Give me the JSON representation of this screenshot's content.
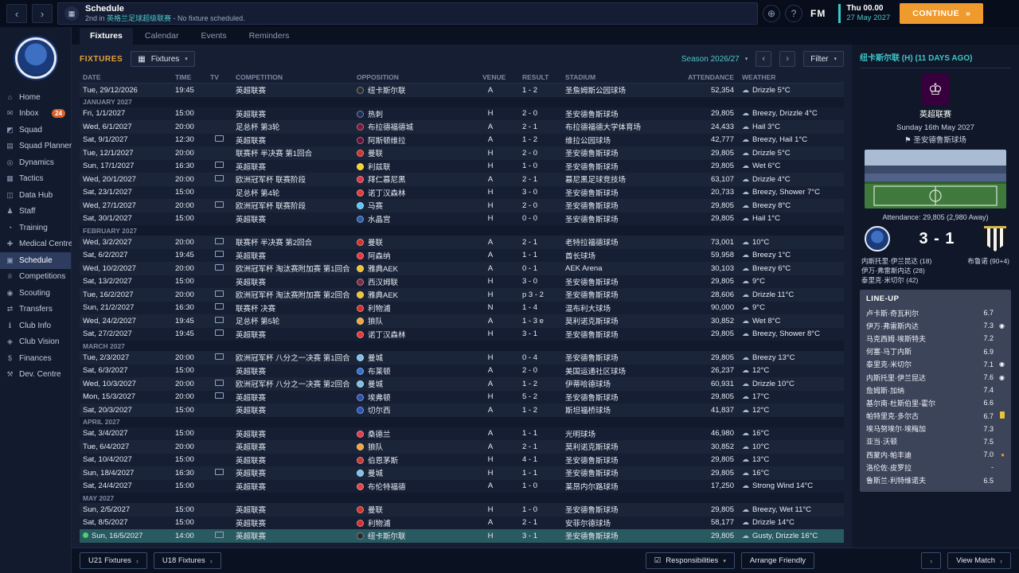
{
  "icons": {
    "back": "‹",
    "forward": "›",
    "continue_arrows": "»",
    "world": "⊕",
    "help": "?",
    "caret": "▾",
    "prev": "‹",
    "next": "›",
    "chev": "›",
    "cloud": "☁",
    "flag": "⚑",
    "crown": "♔",
    "grid": "▦",
    "check": "☑"
  },
  "topbar": {
    "title": "Schedule",
    "subtitle_prefix": "2nd in ",
    "subtitle_link": "英格兰足球超级联赛",
    "subtitle_suffix": " - No fixture scheduled.",
    "fm_label": "FM",
    "date_line1": "Thu 00.00",
    "date_line2": "27 May 2027",
    "continue_label": "CONTINUE"
  },
  "sidebar": {
    "items": [
      {
        "id": "home",
        "icon": "⌂",
        "label": "Home"
      },
      {
        "id": "inbox",
        "icon": "✉",
        "label": "Inbox",
        "badge": "24"
      },
      {
        "id": "squad",
        "icon": "◩",
        "label": "Squad"
      },
      {
        "id": "squad-planner",
        "icon": "▤",
        "label": "Squad Planner"
      },
      {
        "id": "dynamics",
        "icon": "◎",
        "label": "Dynamics"
      },
      {
        "id": "tactics",
        "icon": "▦",
        "label": "Tactics"
      },
      {
        "id": "data-hub",
        "icon": "◫",
        "label": "Data Hub"
      },
      {
        "id": "staff",
        "icon": "♟",
        "label": "Staff"
      },
      {
        "id": "training",
        "icon": "◔",
        "label": "Training"
      },
      {
        "id": "medical-centre",
        "icon": "✚",
        "label": "Medical Centre"
      },
      {
        "id": "schedule",
        "icon": "▣",
        "label": "Schedule",
        "active": true
      },
      {
        "id": "competitions",
        "icon": "♕",
        "label": "Competitions"
      },
      {
        "id": "scouting",
        "icon": "◉",
        "label": "Scouting"
      },
      {
        "id": "transfers",
        "icon": "⇄",
        "label": "Transfers"
      },
      {
        "id": "club-info",
        "icon": "ℹ",
        "label": "Club Info"
      },
      {
        "id": "club-vision",
        "icon": "◈",
        "label": "Club Vision"
      },
      {
        "id": "finances",
        "icon": "$",
        "label": "Finances"
      },
      {
        "id": "dev-centre",
        "icon": "⚒",
        "label": "Dev. Centre"
      }
    ]
  },
  "tabs": [
    {
      "id": "fixtures",
      "label": "Fixtures",
      "active": true
    },
    {
      "id": "calendar",
      "label": "Calendar"
    },
    {
      "id": "events",
      "label": "Events"
    },
    {
      "id": "reminders",
      "label": "Reminders"
    }
  ],
  "toolbar": {
    "section_label": "FIXTURES",
    "view_dropdown": "Fixtures",
    "season_dropdown": "Season 2026/27",
    "filter_label": "Filter"
  },
  "table": {
    "columns": [
      "DATE",
      "TIME",
      "TV",
      "COMPETITION",
      "OPPOSITION",
      "VENUE",
      "",
      "RESULT",
      "STADIUM",
      "ATTENDANCE",
      "WEATHER"
    ],
    "rows": [
      {
        "kind": "fixture",
        "date": "Tue, 29/12/2026",
        "time": "19:45",
        "tv": false,
        "comp": "英超联赛",
        "opp": "纽卡斯尔联",
        "color": "#2b2b2b",
        "venue": "A",
        "res": "L",
        "result": "1 - 2",
        "stadium": "圣詹姆斯公园球场",
        "att": "52,354",
        "weather": "Drizzle 5°C"
      },
      {
        "kind": "month",
        "label": "JANUARY 2027"
      },
      {
        "kind": "fixture",
        "date": "Fri, 1/1/2027",
        "time": "15:00",
        "tv": false,
        "comp": "英超联赛",
        "opp": "热刺",
        "color": "#1b2e57",
        "venue": "H",
        "res": "W",
        "result": "2 - 0",
        "stadium": "圣安德鲁斯球场",
        "att": "29,805",
        "weather": "Breezy, Drizzle 4°C"
      },
      {
        "kind": "fixture",
        "date": "Wed, 6/1/2027",
        "time": "20:00",
        "tv": false,
        "comp": "足总杯 第3轮",
        "opp": "布拉德福德城",
        "color": "#7f1734",
        "venue": "A",
        "res": "W",
        "result": "2 - 1",
        "stadium": "布拉德福德大学体育场",
        "att": "24,433",
        "weather": "Hail 3°C"
      },
      {
        "kind": "fixture",
        "date": "Sat, 9/1/2027",
        "time": "12:30",
        "tv": true,
        "comp": "英超联赛",
        "opp": "阿斯顿维拉",
        "color": "#670e36",
        "venue": "A",
        "res": "L",
        "result": "1 - 2",
        "stadium": "维拉公园球场",
        "att": "42,777",
        "weather": "Breezy, Hail 1°C"
      },
      {
        "kind": "fixture",
        "date": "Tue, 12/1/2027",
        "time": "20:00",
        "tv": false,
        "comp": "联赛杯 半决赛 第1回合",
        "opp": "曼联",
        "color": "#d0342c",
        "venue": "H",
        "res": "W",
        "result": "2 - 0",
        "stadium": "圣安德鲁斯球场",
        "att": "29,805",
        "weather": "Drizzle 5°C"
      },
      {
        "kind": "fixture",
        "date": "Sun, 17/1/2027",
        "time": "16:30",
        "tv": true,
        "comp": "英超联赛",
        "opp": "利兹联",
        "color": "#f5d327",
        "venue": "H",
        "res": "W",
        "result": "1 - 0",
        "stadium": "圣安德鲁斯球场",
        "att": "29,805",
        "weather": "Wet 6°C"
      },
      {
        "kind": "fixture",
        "date": "Wed, 20/1/2027",
        "time": "20:00",
        "tv": true,
        "comp": "欧洲冠军杯 联赛阶段",
        "opp": "拜仁慕尼黑",
        "color": "#dc3545",
        "venue": "A",
        "res": "W",
        "result": "2 - 1",
        "stadium": "慕尼黑足球竞技场",
        "att": "63,107",
        "weather": "Drizzle 4°C"
      },
      {
        "kind": "fixture",
        "date": "Sat, 23/1/2027",
        "time": "15:00",
        "tv": false,
        "comp": "足总杯 第4轮",
        "opp": "诺丁汉森林",
        "color": "#e53935",
        "venue": "H",
        "res": "W",
        "result": "3 - 0",
        "stadium": "圣安德鲁斯球场",
        "att": "20,733",
        "weather": "Breezy, Shower 7°C"
      },
      {
        "kind": "fixture",
        "date": "Wed, 27/1/2027",
        "time": "20:00",
        "tv": true,
        "comp": "欧洲冠军杯 联赛阶段",
        "opp": "马赛",
        "color": "#5cc6f0",
        "venue": "H",
        "res": "W",
        "result": "2 - 0",
        "stadium": "圣安德鲁斯球场",
        "att": "29,805",
        "weather": "Breezy 8°C"
      },
      {
        "kind": "fixture",
        "date": "Sat, 30/1/2027",
        "time": "15:00",
        "tv": false,
        "comp": "英超联赛",
        "opp": "水晶宫",
        "color": "#2b5cab",
        "venue": "H",
        "res": "D",
        "result": "0 - 0",
        "stadium": "圣安德鲁斯球场",
        "att": "29,805",
        "weather": "Hail 1°C"
      },
      {
        "kind": "month",
        "label": "FEBRUARY 2027"
      },
      {
        "kind": "fixture",
        "date": "Wed, 3/2/2027",
        "time": "20:00",
        "tv": true,
        "comp": "联赛杯 半决赛 第2回合",
        "opp": "曼联",
        "color": "#d0342c",
        "venue": "A",
        "res": "W",
        "result": "2 - 1",
        "stadium": "老特拉福德球场",
        "att": "73,001",
        "weather": "10°C"
      },
      {
        "kind": "fixture",
        "date": "Sat, 6/2/2027",
        "time": "19:45",
        "tv": true,
        "comp": "英超联赛",
        "opp": "阿森纳",
        "color": "#ef3340",
        "venue": "A",
        "res": "D",
        "result": "1 - 1",
        "stadium": "酋长球场",
        "att": "59,958",
        "weather": "Breezy 1°C"
      },
      {
        "kind": "fixture",
        "date": "Wed, 10/2/2027",
        "time": "20:00",
        "tv": true,
        "comp": "欧洲冠军杯 淘汰赛附加赛 第1回合",
        "opp": "雅典AEK",
        "color": "#f2c230",
        "venue": "A",
        "res": "L",
        "result": "0 - 1",
        "stadium": "AEK Arena",
        "att": "30,103",
        "weather": "Breezy 6°C"
      },
      {
        "kind": "fixture",
        "date": "Sat, 13/2/2027",
        "time": "15:00",
        "tv": false,
        "comp": "英超联赛",
        "opp": "西汉姆联",
        "color": "#7d2c3f",
        "venue": "H",
        "res": "W",
        "result": "3 - 0",
        "stadium": "圣安德鲁斯球场",
        "att": "29,805",
        "weather": "9°C"
      },
      {
        "kind": "fixture",
        "date": "Tue, 16/2/2027",
        "time": "20:00",
        "tv": true,
        "comp": "欧洲冠军杯 淘汰赛附加赛 第2回合",
        "opp": "雅典AEK",
        "color": "#f2c230",
        "venue": "H",
        "res": "W",
        "result": "p 3 - 2",
        "stadium": "圣安德鲁斯球场",
        "att": "28,606",
        "weather": "Drizzle 11°C"
      },
      {
        "kind": "fixture",
        "date": "Sun, 21/2/2027",
        "time": "16:30",
        "tv": true,
        "comp": "联赛杯 决赛",
        "opp": "利物浦",
        "color": "#d32f2f",
        "venue": "N",
        "res": "L",
        "result": "1 - 4",
        "stadium": "温布利大球场",
        "att": "90,000",
        "weather": "9°C"
      },
      {
        "kind": "fixture",
        "date": "Wed, 24/2/2027",
        "time": "19:45",
        "tv": true,
        "comp": "足总杯 第5轮",
        "opp": "狼队",
        "color": "#f0a63a",
        "venue": "A",
        "res": "D",
        "result": "1 - 3 e",
        "stadium": "莫利诺克斯球场",
        "att": "30,852",
        "weather": "Wet 8°C"
      },
      {
        "kind": "fixture",
        "date": "Sat, 27/2/2027",
        "time": "19:45",
        "tv": true,
        "comp": "英超联赛",
        "opp": "诺丁汉森林",
        "color": "#e53935",
        "venue": "H",
        "res": "W",
        "result": "3 - 1",
        "stadium": "圣安德鲁斯球场",
        "att": "29,805",
        "weather": "Breezy, Shower 8°C"
      },
      {
        "kind": "month",
        "label": "MARCH 2027"
      },
      {
        "kind": "fixture",
        "date": "Tue, 2/3/2027",
        "time": "20:00",
        "tv": true,
        "comp": "欧洲冠军杯 八分之一决赛 第1回合",
        "opp": "曼城",
        "color": "#7fc0e8",
        "venue": "H",
        "res": "L",
        "result": "0 - 4",
        "stadium": "圣安德鲁斯球场",
        "att": "29,805",
        "weather": "Breezy 13°C"
      },
      {
        "kind": "fixture",
        "date": "Sat, 6/3/2027",
        "time": "15:00",
        "tv": false,
        "comp": "英超联赛",
        "opp": "布莱顿",
        "color": "#2f6fd0",
        "venue": "A",
        "res": "W",
        "result": "2 - 0",
        "stadium": "美国运通社区球场",
        "att": "26,237",
        "weather": "12°C"
      },
      {
        "kind": "fixture",
        "date": "Wed, 10/3/2027",
        "time": "20:00",
        "tv": true,
        "comp": "欧洲冠军杯 八分之一决赛 第2回合",
        "opp": "曼城",
        "color": "#7fc0e8",
        "venue": "A",
        "res": "L",
        "result": "1 - 2",
        "stadium": "伊蒂哈德球场",
        "att": "60,931",
        "weather": "Drizzle 10°C"
      },
      {
        "kind": "fixture",
        "date": "Mon, 15/3/2027",
        "time": "20:00",
        "tv": true,
        "comp": "英超联赛",
        "opp": "埃弗顿",
        "color": "#2f4fae",
        "venue": "H",
        "res": "W",
        "result": "5 - 2",
        "stadium": "圣安德鲁斯球场",
        "att": "29,805",
        "weather": "17°C"
      },
      {
        "kind": "fixture",
        "date": "Sat, 20/3/2027",
        "time": "15:00",
        "tv": false,
        "comp": "英超联赛",
        "opp": "切尔西",
        "color": "#2a52be",
        "venue": "A",
        "res": "L",
        "result": "1 - 2",
        "stadium": "斯坦福桥球场",
        "att": "41,837",
        "weather": "12°C"
      },
      {
        "kind": "month",
        "label": "APRIL 2027"
      },
      {
        "kind": "fixture",
        "date": "Sat, 3/4/2027",
        "time": "15:00",
        "tv": false,
        "comp": "英超联赛",
        "opp": "桑德兰",
        "color": "#e23b4d",
        "venue": "A",
        "res": "D",
        "result": "1 - 1",
        "stadium": "光明球场",
        "att": "46,980",
        "weather": "16°C"
      },
      {
        "kind": "fixture",
        "date": "Tue, 6/4/2027",
        "time": "20:00",
        "tv": false,
        "comp": "英超联赛",
        "opp": "狼队",
        "color": "#f0a63a",
        "venue": "A",
        "res": "W",
        "result": "2 - 1",
        "stadium": "莫利诺克斯球场",
        "att": "30,852",
        "weather": "10°C"
      },
      {
        "kind": "fixture",
        "date": "Sat, 10/4/2027",
        "time": "15:00",
        "tv": false,
        "comp": "英超联赛",
        "opp": "伯恩茅斯",
        "color": "#c43b3b",
        "venue": "H",
        "res": "W",
        "result": "4 - 1",
        "stadium": "圣安德鲁斯球场",
        "att": "29,805",
        "weather": "13°C"
      },
      {
        "kind": "fixture",
        "date": "Sun, 18/4/2027",
        "time": "16:30",
        "tv": true,
        "comp": "英超联赛",
        "opp": "曼城",
        "color": "#7fc0e8",
        "venue": "H",
        "res": "D",
        "result": "1 - 1",
        "stadium": "圣安德鲁斯球场",
        "att": "29,805",
        "weather": "16°C"
      },
      {
        "kind": "fixture",
        "date": "Sat, 24/4/2027",
        "time": "15:00",
        "tv": false,
        "comp": "英超联赛",
        "opp": "布伦特福德",
        "color": "#e04444",
        "venue": "A",
        "res": "W",
        "result": "1 - 0",
        "stadium": "莱昂内尔路球场",
        "att": "17,250",
        "weather": "Strong Wind 14°C"
      },
      {
        "kind": "month",
        "label": "MAY 2027"
      },
      {
        "kind": "fixture",
        "date": "Sun, 2/5/2027",
        "time": "15:00",
        "tv": false,
        "comp": "英超联赛",
        "opp": "曼联",
        "color": "#d0342c",
        "venue": "H",
        "res": "W",
        "result": "1 - 0",
        "stadium": "圣安德鲁斯球场",
        "att": "29,805",
        "weather": "Breezy, Wet 11°C"
      },
      {
        "kind": "fixture",
        "date": "Sat, 8/5/2027",
        "time": "15:00",
        "tv": false,
        "comp": "英超联赛",
        "opp": "利物浦",
        "color": "#d32f2f",
        "venue": "A",
        "res": "W",
        "result": "2 - 1",
        "stadium": "安菲尔德球场",
        "att": "58,177",
        "weather": "Drizzle 14°C"
      },
      {
        "kind": "fixture",
        "date": "Sun, 16/5/2027",
        "time": "14:00",
        "tv": true,
        "comp": "英超联赛",
        "opp": "纽卡斯尔联",
        "color": "#2b2b2b",
        "venue": "H",
        "res": "W",
        "result": "3 - 1",
        "stadium": "圣安德鲁斯球场",
        "att": "29,805",
        "weather": "Gusty, Drizzle 16°C",
        "selected": true
      }
    ]
  },
  "match_panel": {
    "title": "纽卡斯尔联 (H) (11 DAYS AGO)",
    "competition": "英超联赛",
    "date": "Sunday 16th May 2027",
    "stadium": "圣安德鲁斯球场",
    "attendance_line": "Attendance: 29,805 (2,980 Away)",
    "score": "3 - 1",
    "home_scorers": [
      "内斯托里·伊兰昆达 (18)",
      "伊万·弗雷斯内达 (28)",
      "泰里克·米切尔 (42)"
    ],
    "away_scorers": [
      "布鲁诺 (90+4)"
    ],
    "lineup_title": "LINE-UP",
    "lineup": [
      {
        "name": "卢卡斯·奇瓦利尔",
        "rating": "6.7"
      },
      {
        "name": "伊万·弗雷斯内达",
        "rating": "7.3",
        "icon": "goal"
      },
      {
        "name": "马克西姆·埃斯特夫",
        "rating": "7.2"
      },
      {
        "name": "何塞·马丁内斯",
        "rating": "6.9"
      },
      {
        "name": "泰里克·米切尔",
        "rating": "7.1",
        "icon": "goal"
      },
      {
        "name": "内斯托里·伊兰昆达",
        "rating": "7.6",
        "icon": "goal"
      },
      {
        "name": "詹姆斯·加纳",
        "rating": "7.4"
      },
      {
        "name": "基尔南·杜斯伯里-霍尔",
        "rating": "6.6"
      },
      {
        "name": "帕特里克·多尔古",
        "rating": "6.7",
        "icon": "yellow"
      },
      {
        "name": "埃马努埃尔·埃梅加",
        "rating": "7.3"
      },
      {
        "name": "亚当·沃顿",
        "rating": "7.5"
      },
      {
        "name": "西蒙内·帕丰迪",
        "rating": "7.0",
        "icon": "subon"
      },
      {
        "name": "洛伦佐·皮罗拉",
        "rating": "-"
      },
      {
        "name": "鲁斯兰·利特维诺夫",
        "rating": "6.5"
      }
    ]
  },
  "footer": {
    "u21_label": "U21 Fixtures",
    "u18_label": "U18 Fixtures",
    "responsibilities_label": "Responsibilities",
    "arrange_friendly_label": "Arrange Friendly",
    "view_match_label": "View Match"
  }
}
